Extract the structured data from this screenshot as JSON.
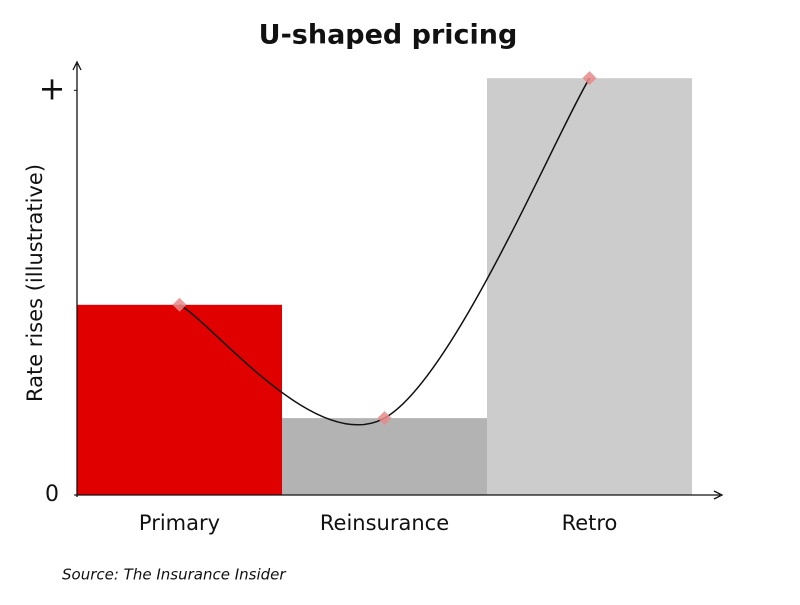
{
  "chart_data": {
    "type": "bar",
    "title": "U-shaped pricing",
    "ylabel": "Rate rises (illustrative)",
    "categories": [
      "Primary",
      "Reinsurance",
      "Retro"
    ],
    "values": [
      0.47,
      0.19,
      1.03
    ],
    "colors": [
      "#e00000",
      "#b3b3b3",
      "#cccccc"
    ],
    "ylim": [
      0,
      1.07
    ],
    "yticks": [
      0,
      {
        "value": 1,
        "label": "+"
      }
    ],
    "source": "Source: The Insurance Insider"
  }
}
